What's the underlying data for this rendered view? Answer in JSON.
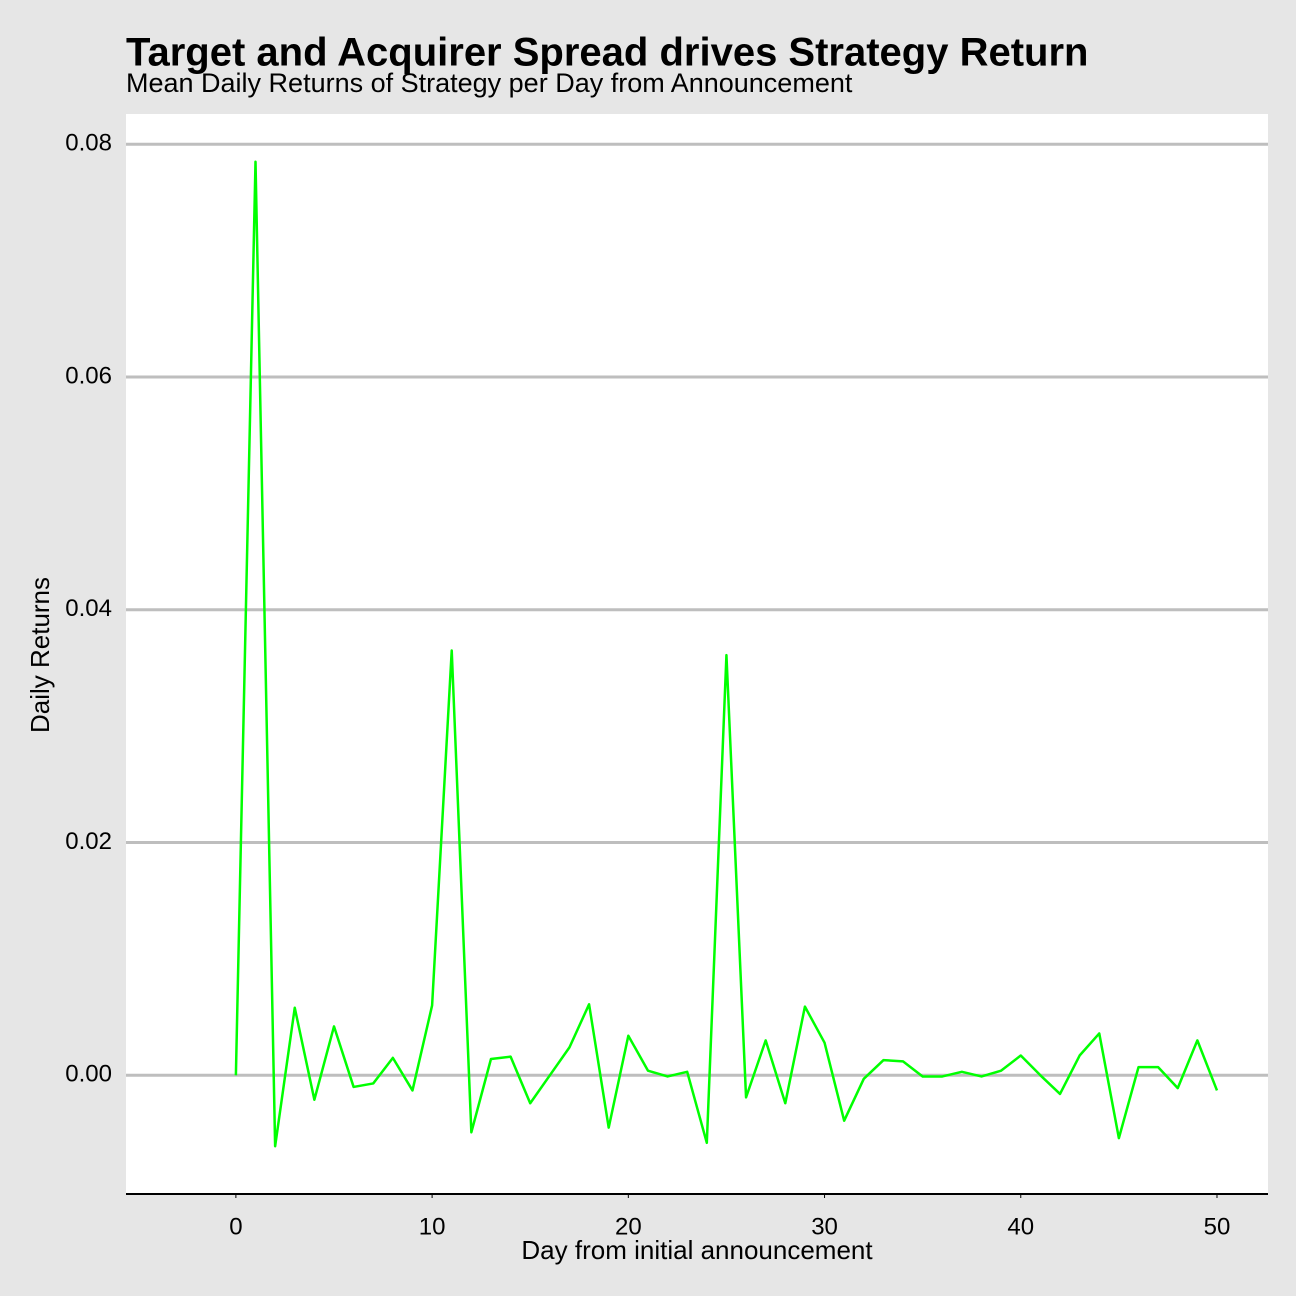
{
  "chart_data": {
    "type": "line",
    "title": "Target and Acquirer Spread drives Strategy Return",
    "subtitle": "Mean Daily Returns of Strategy per Day from Announcement",
    "x_label": "Day from initial announcement",
    "y_label": "Daily Returns",
    "x": [
      0,
      1,
      2,
      3,
      4,
      5,
      6,
      7,
      8,
      9,
      10,
      11,
      12,
      13,
      14,
      15,
      16,
      17,
      18,
      19,
      20,
      21,
      22,
      23,
      24,
      25,
      26,
      27,
      28,
      29,
      30,
      31,
      32,
      33,
      34,
      35,
      36,
      37,
      38,
      39,
      40,
      41,
      42,
      43,
      44,
      45,
      46,
      47,
      48,
      49,
      50
    ],
    "series": [
      {
        "name": "Daily Returns",
        "color": "#00ff00",
        "values": [
          0,
          0.0785,
          -0.0061,
          0.0058,
          -0.0021,
          0.0042,
          -0.001,
          -0.0007,
          0.0015,
          -0.0013,
          0.006,
          0.0365,
          -0.0049,
          0.0014,
          0.0016,
          -0.0024,
          0,
          0.0024,
          0.0061,
          -0.0045,
          0.0034,
          0.0004,
          -0.0001,
          0.0003,
          -0.0058,
          0.0361,
          -0.0019,
          0.003,
          -0.0024,
          0.0059,
          0.0028,
          -0.0039,
          -0.0003,
          0.0013,
          0.0012,
          -0.0001,
          -0.0001,
          0.0003,
          -0.0001,
          0.0004,
          0.0017,
          0,
          -0.0016,
          0.0017,
          0.0036,
          -0.0054,
          0.0007,
          0.0007,
          -0.0011,
          0.003,
          -0.0013
        ]
      }
    ],
    "xlim": [
      -5.6,
      52.6
    ],
    "ylim": [
      -0.0102,
      0.0826
    ],
    "xticks": [
      0,
      10,
      20,
      30,
      40,
      50
    ],
    "yticks": [
      {
        "value": 0,
        "label": "0.00"
      },
      0.02,
      0.04,
      0.06,
      0.08
    ],
    "grid": true
  }
}
